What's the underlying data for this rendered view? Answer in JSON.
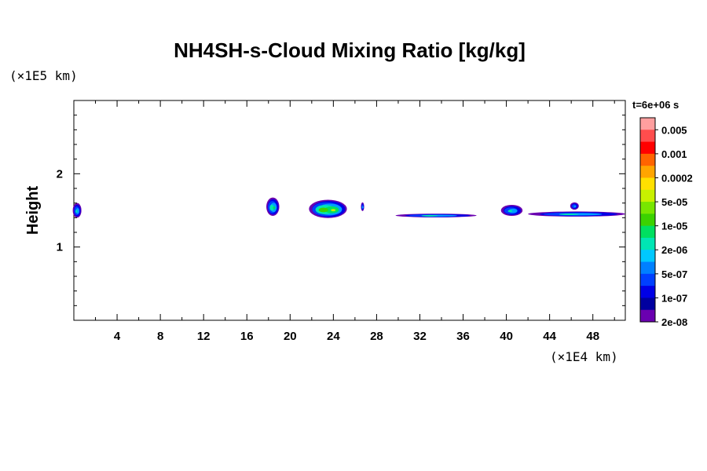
{
  "chart_data": {
    "type": "heatmap",
    "title": "NH4SH-s-Cloud Mixing Ratio [kg/kg]",
    "ylabel": "Height",
    "x_unit": "(×1E4 km)",
    "y_unit": "(×1E5 km)",
    "xlim": [
      0,
      51
    ],
    "ylim": [
      0,
      3
    ],
    "x_ticks": [
      4,
      8,
      12,
      16,
      20,
      24,
      28,
      32,
      36,
      40,
      44,
      48
    ],
    "y_ticks": [
      1,
      2
    ],
    "time_label": "t=6e+06 s",
    "colorbar": {
      "labels": [
        "0.005",
        "0.001",
        "0.0002",
        "5e-05",
        "1e-05",
        "2e-06",
        "5e-07",
        "1e-07",
        "2e-08"
      ],
      "colors": [
        "#ff9f9f",
        "#ff4d4d",
        "#ff0000",
        "#ff6400",
        "#ffa500",
        "#ffe000",
        "#c8f000",
        "#78e600",
        "#3cd200",
        "#00e060",
        "#00e6b4",
        "#00c8ff",
        "#0080ff",
        "#0040ff",
        "#0000e6",
        "#0000a0",
        "#6a00b0"
      ]
    },
    "cloud_patches": [
      {
        "x": 0.3,
        "y": 1.5,
        "w": 0.8,
        "h": 0.2,
        "peak": 2
      },
      {
        "x": 18.4,
        "y": 1.55,
        "w": 1.2,
        "h": 0.25,
        "peak": 3
      },
      {
        "x": 23.5,
        "y": 1.52,
        "w": 3.5,
        "h": 0.25,
        "peak": 5
      },
      {
        "x": 26.7,
        "y": 1.55,
        "w": 0.3,
        "h": 0.12,
        "peak": 1
      },
      {
        "x": 33.5,
        "y": 1.43,
        "w": 7.5,
        "h": 0.05,
        "peak": 2
      },
      {
        "x": 40.5,
        "y": 1.5,
        "w": 2.0,
        "h": 0.15,
        "peak": 2
      },
      {
        "x": 46.5,
        "y": 1.45,
        "w": 9.0,
        "h": 0.07,
        "peak": 2
      },
      {
        "x": 46.3,
        "y": 1.56,
        "w": 0.8,
        "h": 0.1,
        "peak": 1
      }
    ]
  }
}
